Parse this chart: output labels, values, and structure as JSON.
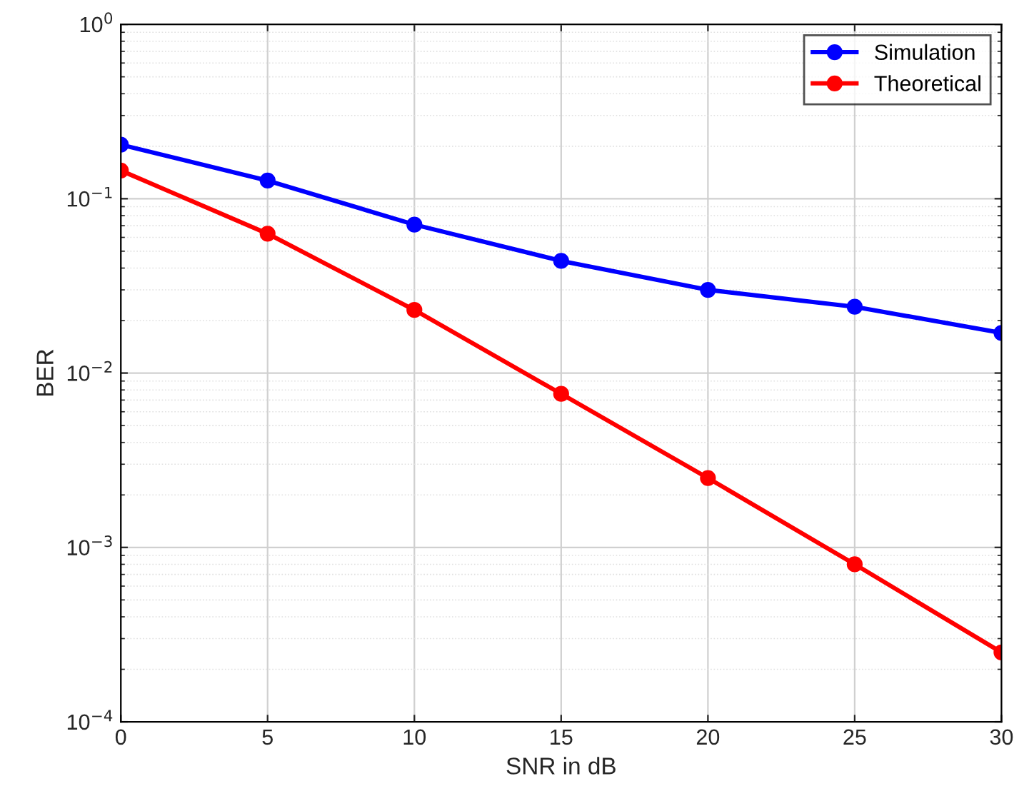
{
  "chart_data": {
    "type": "line",
    "xlabel": "SNR in dB",
    "ylabel": "BER",
    "x": [
      0,
      5,
      10,
      15,
      20,
      25,
      30
    ],
    "series": [
      {
        "name": "Simulation",
        "color": "#0000ff",
        "values": [
          0.204,
          0.127,
          0.071,
          0.044,
          0.03,
          0.024,
          0.017
        ]
      },
      {
        "name": "Theoretical",
        "color": "#ff0000",
        "values": [
          0.145,
          0.063,
          0.023,
          0.0076,
          0.0025,
          0.0008,
          0.00025
        ]
      }
    ],
    "xlim": [
      0,
      30
    ],
    "xticks": [
      0,
      5,
      10,
      15,
      20,
      25,
      30
    ],
    "ylim": [
      0.0001,
      1
    ],
    "yticks": [
      {
        "value": 0.0001,
        "label": "10$^{−4}$"
      },
      {
        "value": 0.001,
        "label": "10$^{−3}$"
      },
      {
        "value": 0.01,
        "label": "10$^{−2}$"
      },
      {
        "value": 0.1,
        "label": "10$^{−1}$"
      },
      {
        "value": 1,
        "label": "10$^{0}$"
      }
    ],
    "log": "y",
    "grid": true,
    "legend": "top right",
    "marker": "circle",
    "line_style": "solid"
  }
}
